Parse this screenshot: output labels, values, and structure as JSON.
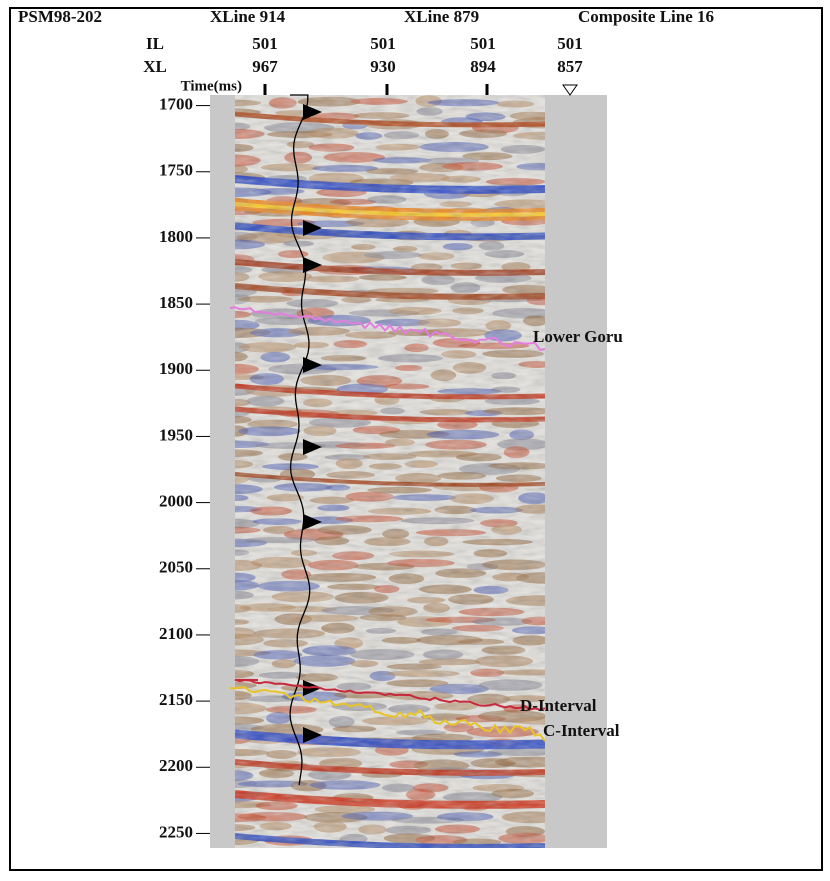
{
  "header": {
    "survey": "PSM98-202",
    "xline_a": "XLine 914",
    "xline_b": "XLine 879",
    "composite": "Composite Line 16"
  },
  "traces": {
    "il_label": "IL",
    "xl_label": "XL",
    "il": [
      501,
      501,
      501,
      501
    ],
    "xl": [
      967,
      930,
      894,
      857
    ]
  },
  "time_axis": {
    "label": "Time(ms)",
    "lim": [
      1692,
      2261
    ],
    "ticks": [
      1700,
      1750,
      1800,
      1850,
      1900,
      1950,
      2000,
      2050,
      2100,
      2150,
      2200,
      2250
    ]
  },
  "horizons": [
    {
      "name": "Lower Goru",
      "color": "#e47de0"
    },
    {
      "name": "D-Interval",
      "color": "#c8283c"
    },
    {
      "name": "C-Interval",
      "color": "#e8c428"
    }
  ]
}
